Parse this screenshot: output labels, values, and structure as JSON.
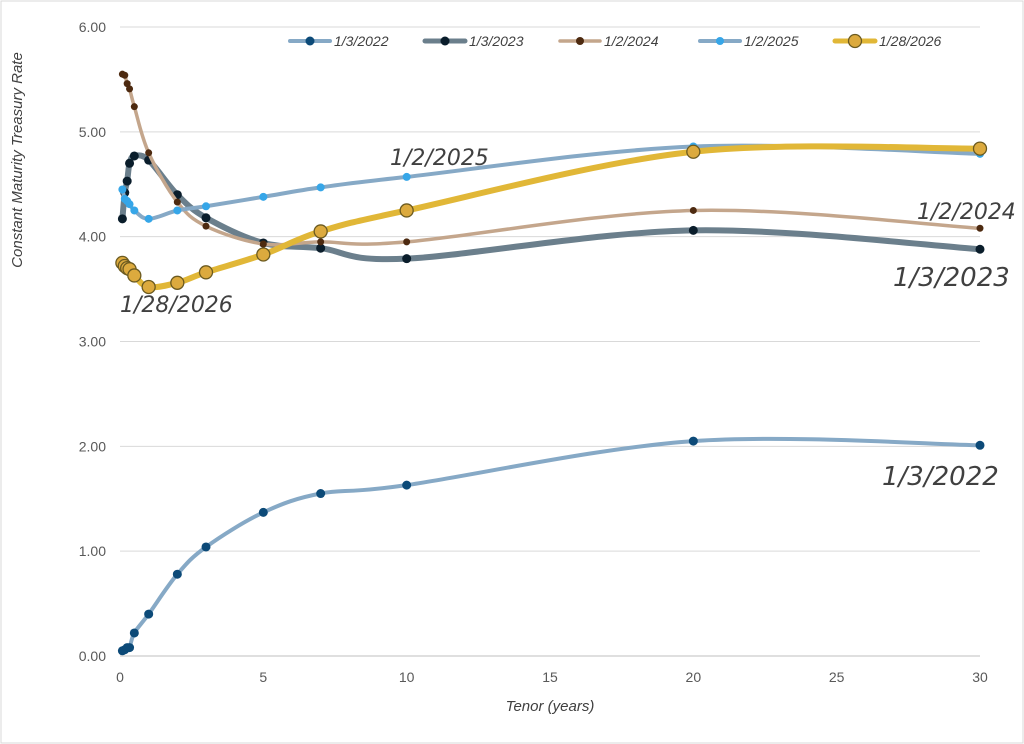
{
  "chart_data": {
    "type": "line",
    "title": "",
    "xlabel": "Tenor (years)",
    "ylabel": "Constant Maturity Treasury Rate",
    "xlim": [
      0,
      30
    ],
    "ylim": [
      0,
      6
    ],
    "x_ticks": [
      0,
      5,
      10,
      15,
      20,
      25,
      30
    ],
    "y_ticks": [
      0,
      1,
      2,
      3,
      4,
      5,
      6
    ],
    "x_tick_labels": [
      "0",
      "5",
      "10",
      "15",
      "20",
      "25",
      "30"
    ],
    "y_tick_labels": [
      "0.00",
      "1.00",
      "2.00",
      "3.00",
      "4.00",
      "5.00",
      "6.00"
    ],
    "grid": "horizontal",
    "legend_position": "top",
    "x": [
      0.0833,
      0.1667,
      0.25,
      0.3333,
      0.5,
      1,
      2,
      3,
      5,
      7,
      10,
      20,
      30
    ],
    "series": [
      {
        "name": "1/3/2022",
        "line_color": "#86a9c6",
        "marker_color": "#0c4a78",
        "values": [
          0.05,
          0.06,
          0.08,
          0.08,
          0.22,
          0.4,
          0.78,
          1.04,
          1.37,
          1.55,
          1.63,
          2.05,
          2.01
        ]
      },
      {
        "name": "1/3/2023",
        "line_color": "#6b7f8c",
        "marker_color": "#0a1d2b",
        "values": [
          4.17,
          4.42,
          4.53,
          4.7,
          4.77,
          4.73,
          4.4,
          4.18,
          3.94,
          3.89,
          3.79,
          4.06,
          3.88
        ]
      },
      {
        "name": "1/2/2024",
        "line_color": "#c4a68c",
        "marker_color": "#4d2a10",
        "values": [
          5.55,
          5.54,
          5.46,
          5.41,
          5.24,
          4.8,
          4.33,
          4.1,
          3.93,
          3.95,
          3.95,
          4.25,
          4.08
        ]
      },
      {
        "name": "1/2/2025",
        "line_color": "#86a9c6",
        "marker_color": "#36a6e8",
        "values": [
          4.45,
          4.36,
          4.34,
          4.31,
          4.25,
          4.17,
          4.25,
          4.29,
          4.38,
          4.47,
          4.57,
          4.86,
          4.79
        ]
      },
      {
        "name": "1/28/2026",
        "line_color": "#e1b737",
        "marker_color": "#dcaa3e",
        "values": [
          3.75,
          3.72,
          3.7,
          3.69,
          3.63,
          3.52,
          3.56,
          3.66,
          3.83,
          4.05,
          4.25,
          4.81,
          4.84
        ]
      }
    ],
    "annotations": [
      "1/2/2025",
      "1/2/2024",
      "1/3/2023",
      "1/28/2026",
      "1/3/2022"
    ]
  }
}
